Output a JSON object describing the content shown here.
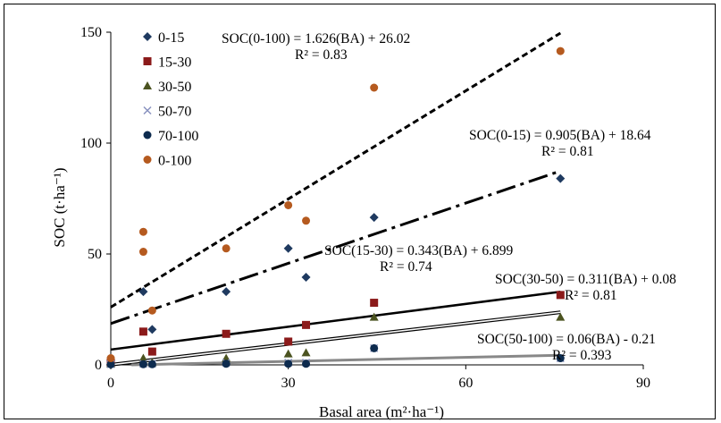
{
  "chart_data": {
    "type": "scatter",
    "xlabel": "Basal area (m²·ha⁻¹)",
    "ylabel": "SOC (t·ha⁻¹)",
    "xlim": [
      0,
      90
    ],
    "ylim": [
      0,
      150
    ],
    "xticks": [
      0,
      30,
      60,
      90
    ],
    "yticks": [
      0,
      50,
      100,
      150
    ],
    "grid": false,
    "legend_position": "top-left",
    "series": [
      {
        "name": "0-15",
        "marker": "diamond",
        "color": "#1f3a60",
        "x": [
          0,
          5.5,
          7,
          19.5,
          30,
          33,
          44.5,
          76
        ],
        "y": [
          2,
          33,
          16,
          33,
          52.5,
          39.5,
          66.5,
          84
        ]
      },
      {
        "name": "15-30",
        "marker": "square",
        "color": "#8b1a1a",
        "x": [
          0,
          5.5,
          7,
          19.5,
          30,
          33,
          44.5,
          76
        ],
        "y": [
          1,
          15,
          6,
          14,
          10.5,
          18,
          28,
          31.5
        ]
      },
      {
        "name": "30-50",
        "marker": "triangle",
        "color": "#4b5320",
        "x": [
          0,
          5.5,
          7,
          19.5,
          30,
          33,
          44.5,
          76
        ],
        "y": [
          0.5,
          3,
          1,
          3,
          5,
          5.5,
          21.5,
          21.5
        ]
      },
      {
        "name": "50-70",
        "marker": "x",
        "color": "#8a93c0",
        "x": [
          0,
          5.5,
          7,
          19.5,
          30,
          33,
          44.5,
          76
        ],
        "y": [
          0.3,
          0.5,
          0.5,
          1,
          1,
          1,
          7.5,
          3
        ]
      },
      {
        "name": "70-100",
        "marker": "circle",
        "color": "#0d2b4e",
        "x": [
          0,
          5.5,
          7,
          19.5,
          30,
          33,
          44.5,
          76
        ],
        "y": [
          0.2,
          0.3,
          0.3,
          0.5,
          0.5,
          0.5,
          7.5,
          3
        ]
      },
      {
        "name": "0-100",
        "marker": "circle",
        "color": "#b55a1f",
        "x": [
          0,
          5.5,
          5.5,
          7,
          19.5,
          30,
          33,
          44.5,
          76
        ],
        "y": [
          3,
          60,
          51,
          24.5,
          52.5,
          72,
          65,
          125,
          141.5
        ]
      }
    ],
    "trendlines": [
      {
        "label": "SOC(0-100) = 1.626(BA) + 26.02",
        "r2": "R² = 0.83",
        "slope": 1.626,
        "intercept": 26.02,
        "style": "short-dash"
      },
      {
        "label": "SOC(0-15) = 0.905(BA) + 18.64",
        "r2": "R² = 0.81",
        "slope": 0.905,
        "intercept": 18.64,
        "style": "long-dash-dot"
      },
      {
        "label": "SOC(15-30) = 0.343(BA) + 6.899",
        "r2": "R² = 0.74",
        "slope": 0.343,
        "intercept": 6.899,
        "style": "solid-black"
      },
      {
        "label": "SOC(30-50) = 0.311(BA) + 0.08",
        "r2": "R² = 0.81",
        "slope": 0.311,
        "intercept": 0.08,
        "style": "double"
      },
      {
        "label": "SOC(50-100) = 0.06(BA) - 0.21",
        "r2": "R² = 0.393",
        "slope": 0.06,
        "intercept": -0.21,
        "style": "solid-gray"
      }
    ]
  }
}
